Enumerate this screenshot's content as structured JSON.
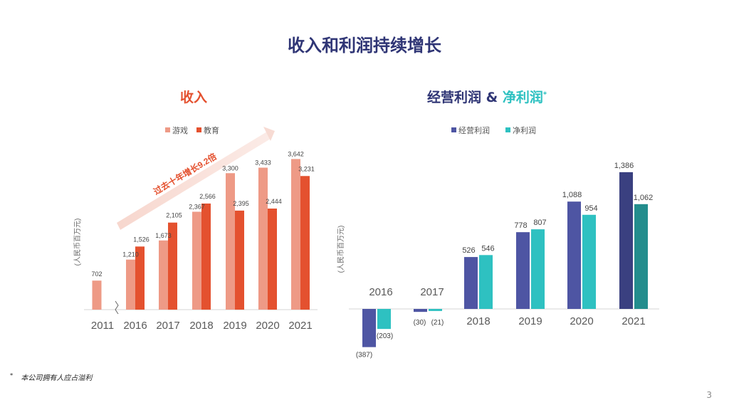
{
  "page": {
    "title": "收入和利润持续增长",
    "footnote": "本公司拥有人应占溢利",
    "footnote_mark": "*",
    "page_number": "3"
  },
  "colors": {
    "title": "#2f3575",
    "games": "#ee9a86",
    "education": "#e4512f",
    "operating": "#4e55a3",
    "net": "#2ec1c1",
    "operating_2021": "#3a4080",
    "net_2021": "#238d8d"
  },
  "chart_data": [
    {
      "type": "bar",
      "title": "收入",
      "ylabel": "(人民币百万元)",
      "categories": [
        "2011",
        "2016",
        "2017",
        "2018",
        "2019",
        "2020",
        "2021"
      ],
      "axis_break_after": "2011",
      "series": [
        {
          "name": "游戏",
          "values": [
            702,
            1210,
            1673,
            2367,
            3300,
            3433,
            3642
          ]
        },
        {
          "name": "教育",
          "values": [
            null,
            1526,
            2105,
            2566,
            2395,
            2444,
            3231
          ]
        }
      ],
      "value_labels": {
        "游戏": [
          "702",
          "1,210",
          "1,673",
          "2,367",
          "3,300",
          "3,433",
          "3,642"
        ],
        "教育": [
          "",
          "1,526",
          "2,105",
          "2,566",
          "2,395",
          "2,444",
          "3,231"
        ]
      },
      "ylim": [
        0,
        4000
      ],
      "annotation": "过去十年增长9.2倍"
    },
    {
      "type": "bar",
      "title_part1": "经营利润",
      "title_amp": "&",
      "title_part2": "净利润",
      "title_mark": "*",
      "ylabel": "(人民币百万元)",
      "categories": [
        "2016",
        "2017",
        "2018",
        "2019",
        "2020",
        "2021"
      ],
      "series": [
        {
          "name": "经营利润",
          "values": [
            -387,
            -30,
            526,
            778,
            1088,
            1386
          ]
        },
        {
          "name": "净利润",
          "values": [
            -203,
            -21,
            546,
            807,
            954,
            1062
          ]
        }
      ],
      "value_labels": {
        "经营利润": [
          "(387)",
          "(30)",
          "526",
          "778",
          "1,088",
          "1,386"
        ],
        "净利润": [
          "(203)",
          "(21)",
          "546",
          "807",
          "954",
          "1,062"
        ]
      },
      "ylim": [
        -400,
        1400
      ]
    }
  ]
}
